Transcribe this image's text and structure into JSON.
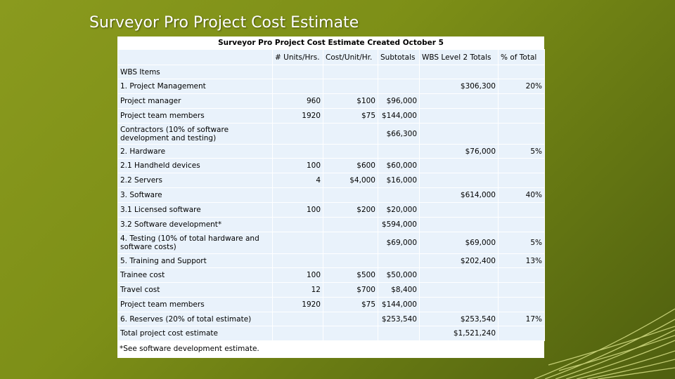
{
  "slide": {
    "title": "Surveyor Pro Project Cost Estimate"
  },
  "table": {
    "caption": "Surveyor Pro Project Cost Estimate Created October 5",
    "headers": [
      "",
      "# Units/Hrs.",
      "Cost/Unit/Hr.",
      "Subtotals",
      "WBS Level 2 Totals",
      "% of Total"
    ],
    "rows": [
      {
        "item": "WBS Items",
        "units": "",
        "cost": "",
        "subtotal": "",
        "level2": "",
        "pct": "",
        "bold": false,
        "indent": false
      },
      {
        "item": "1. Project Management",
        "units": "",
        "cost": "",
        "subtotal": "",
        "level2": "$306,300",
        "pct": "20%",
        "bold": true,
        "indent": false
      },
      {
        "item": "Project manager",
        "units": "960",
        "cost": "$100",
        "subtotal": "$96,000",
        "level2": "",
        "pct": "",
        "bold": false,
        "indent": true
      },
      {
        "item": "Project team members",
        "units": "1920",
        "cost": "$75",
        "subtotal": "$144,000",
        "level2": "",
        "pct": "",
        "bold": false,
        "indent": true
      },
      {
        "item": "Contractors (10% of software development and testing)",
        "units": "",
        "cost": "",
        "subtotal": "$66,300",
        "level2": "",
        "pct": "",
        "bold": false,
        "indent": true,
        "wrap": true
      },
      {
        "item": "2. Hardware",
        "units": "",
        "cost": "",
        "subtotal": "",
        "level2": "$76,000",
        "pct": "5%",
        "bold": true,
        "indent": false
      },
      {
        "item": "2.1 Handheld devices",
        "units": "100",
        "cost": "$600",
        "subtotal": "$60,000",
        "level2": "",
        "pct": "",
        "bold": false,
        "indent": true
      },
      {
        "item": "2.2 Servers",
        "units": "4",
        "cost": "$4,000",
        "subtotal": "$16,000",
        "level2": "",
        "pct": "",
        "bold": false,
        "indent": true
      },
      {
        "item": "3. Software",
        "units": "",
        "cost": "",
        "subtotal": "",
        "level2": "$614,000",
        "pct": "40%",
        "bold": true,
        "indent": false
      },
      {
        "item": "3.1 Licensed software",
        "units": "100",
        "cost": "$200",
        "subtotal": "$20,000",
        "level2": "",
        "pct": "",
        "bold": false,
        "indent": true
      },
      {
        "item": "3.2 Software development*",
        "units": "",
        "cost": "",
        "subtotal": "$594,000",
        "level2": "",
        "pct": "",
        "bold": false,
        "indent": true
      },
      {
        "item": "4. Testing (10% of total hardware and software costs)",
        "units": "",
        "cost": "",
        "subtotal": "$69,000",
        "level2": "$69,000",
        "pct": "5%",
        "bold": true,
        "indent": false,
        "wrap": true
      },
      {
        "item": "5. Training and Support",
        "units": "",
        "cost": "",
        "subtotal": "",
        "level2": "$202,400",
        "pct": "13%",
        "bold": true,
        "indent": false
      },
      {
        "item": "Trainee cost",
        "units": "100",
        "cost": "$500",
        "subtotal": "$50,000",
        "level2": "",
        "pct": "",
        "bold": false,
        "indent": true
      },
      {
        "item": "Travel cost",
        "units": "12",
        "cost": "$700",
        "subtotal": "$8,400",
        "level2": "",
        "pct": "",
        "bold": false,
        "indent": true
      },
      {
        "item": "Project team members",
        "units": "1920",
        "cost": "$75",
        "subtotal": "$144,000",
        "level2": "",
        "pct": "",
        "bold": false,
        "indent": true
      },
      {
        "item": "6. Reserves (20% of total estimate)",
        "units": "",
        "cost": "",
        "subtotal": "$253,540",
        "level2": "$253,540",
        "pct": "17%",
        "bold": true,
        "indent": false
      },
      {
        "item": "Total project cost estimate",
        "units": "",
        "cost": "",
        "subtotal": "",
        "level2": "$1,521,240",
        "pct": "",
        "bold": true,
        "indent": true
      }
    ],
    "footnote": "*See software development estimate."
  }
}
